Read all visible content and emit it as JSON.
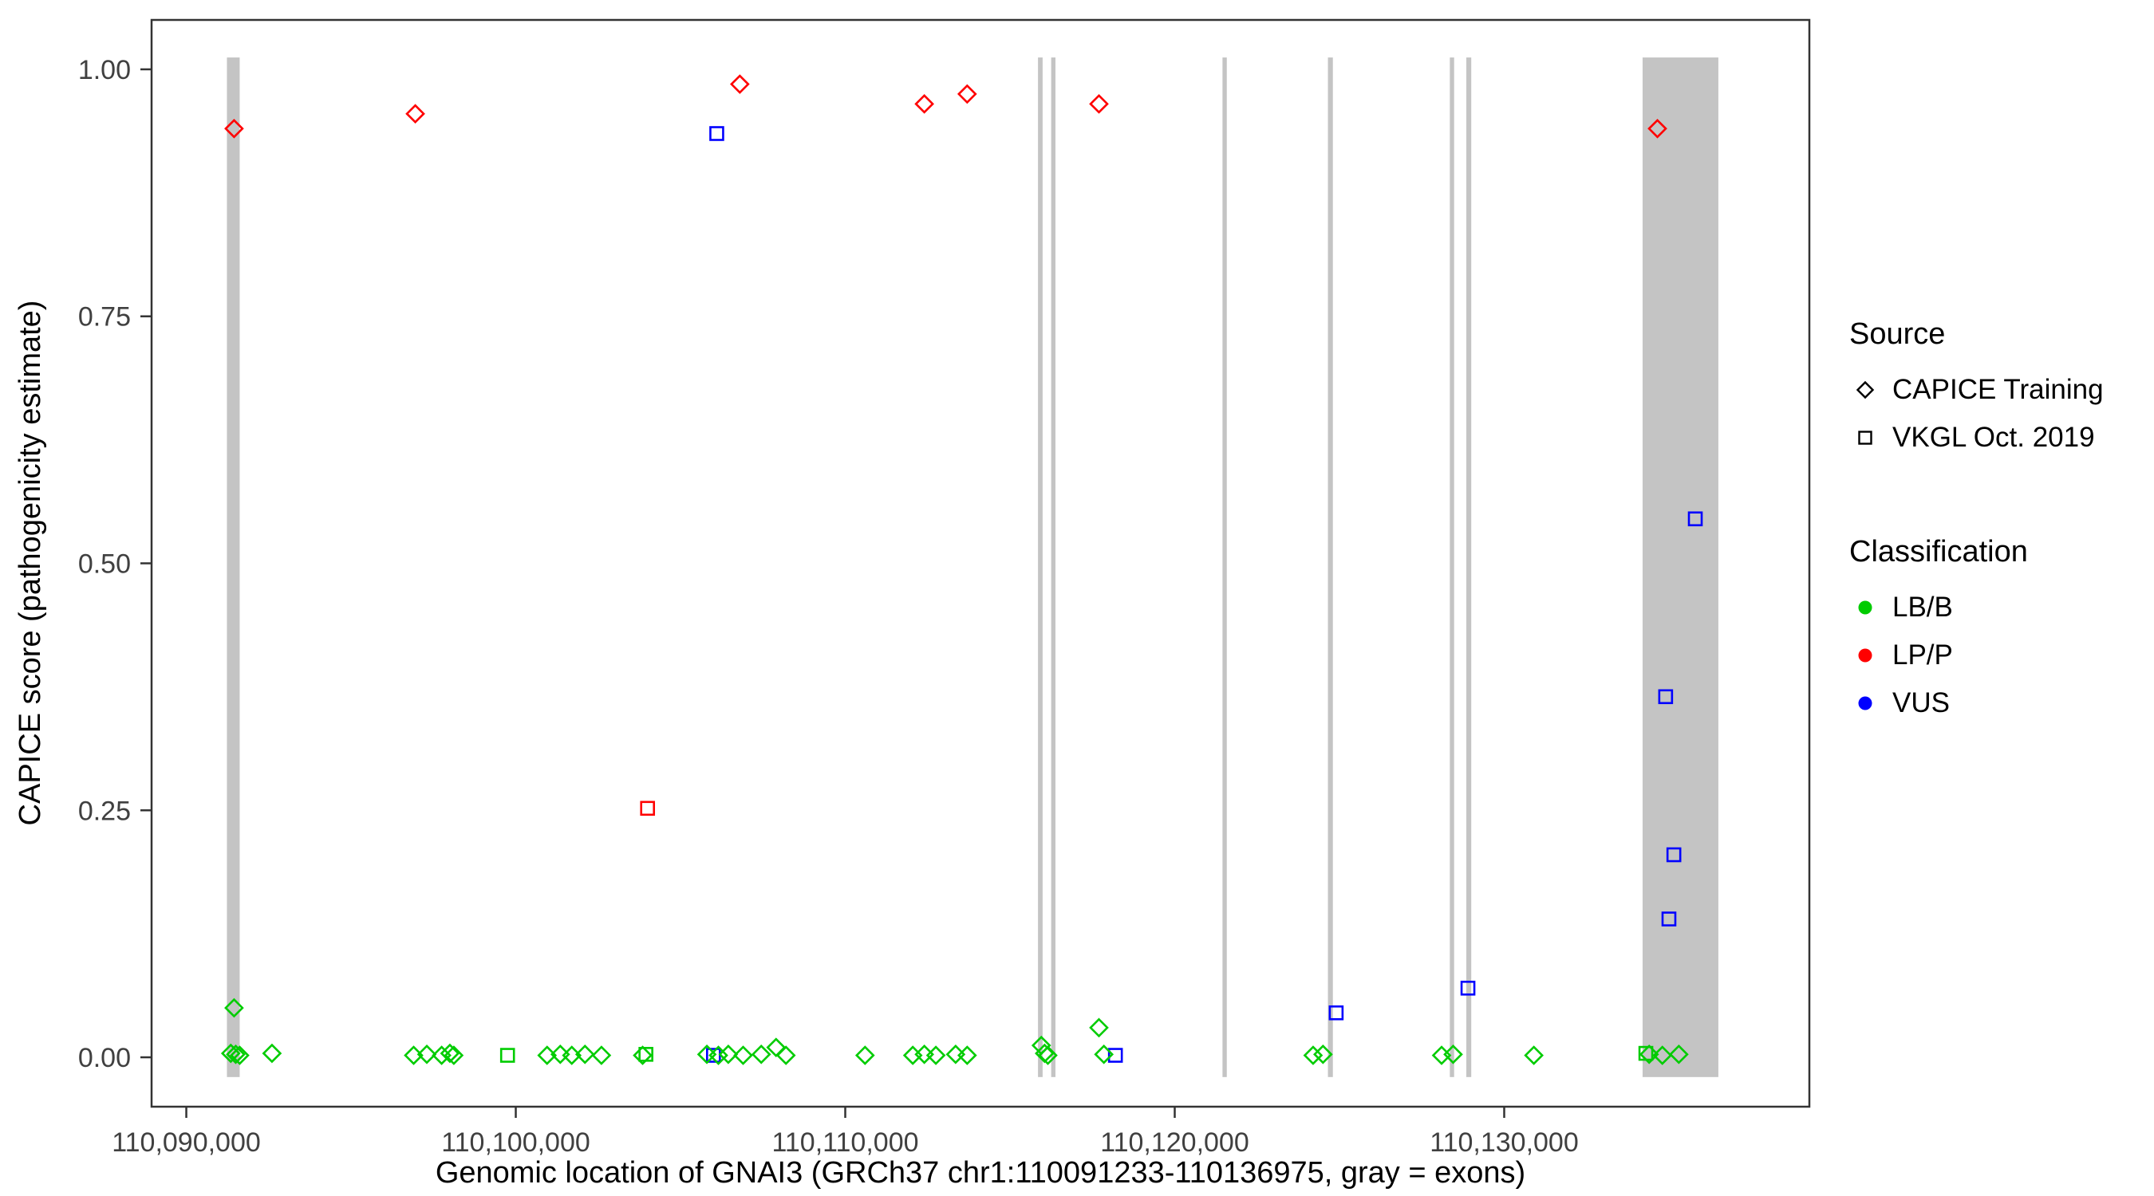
{
  "figure": {
    "xlabel": "Genomic location of GNAI3 (GRCh37 chr1:110091233-110136975, gray = exons)",
    "ylabel": "CAPICE score (pathogenicity estimate)"
  },
  "legend": {
    "source": {
      "title": "Source",
      "items": [
        {
          "label": "CAPICE Training",
          "marker": "diamond"
        },
        {
          "label": "VKGL Oct. 2019",
          "marker": "square"
        }
      ]
    },
    "classification": {
      "title": "Classification",
      "items": [
        {
          "label": "LB/B",
          "color": "#00CC00"
        },
        {
          "label": "LP/P",
          "color": "#FF0000"
        },
        {
          "label": "VUS",
          "color": "#0000FF"
        }
      ]
    }
  },
  "chart_data": {
    "type": "scatter",
    "title": "",
    "xlabel": "Genomic location of GNAI3 (GRCh37 chr1:110091233-110136975, gray = exons)",
    "ylabel": "CAPICE score (pathogenicity estimate)",
    "xlim": [
      110088946,
      110139262
    ],
    "ylim": [
      -0.05,
      1.05
    ],
    "grid": false,
    "legend_position": "right",
    "x_ticks": [
      {
        "value": 110090000,
        "label": "110,090,000"
      },
      {
        "value": 110100000,
        "label": "110,100,000"
      },
      {
        "value": 110110000,
        "label": "110,110,000"
      },
      {
        "value": 110120000,
        "label": "110,120,000"
      },
      {
        "value": 110130000,
        "label": "110,130,000"
      }
    ],
    "y_ticks": [
      {
        "value": 0.0,
        "label": "0.00"
      },
      {
        "value": 0.25,
        "label": "0.25"
      },
      {
        "value": 0.5,
        "label": "0.50"
      },
      {
        "value": 0.75,
        "label": "0.75"
      },
      {
        "value": 1.0,
        "label": "1.00"
      }
    ],
    "colors": {
      "LB/B": "#00CC00",
      "LP/P": "#FF0000",
      "VUS": "#0000FF"
    },
    "exon_color": "#C4C4C4",
    "exon_band": {
      "ymin": -0.02,
      "ymax": 1.012
    },
    "exons": [
      [
        110091233,
        110091620
      ],
      [
        110115850,
        110115990
      ],
      [
        110116250,
        110116380
      ],
      [
        110121450,
        110121580
      ],
      [
        110124650,
        110124800
      ],
      [
        110128350,
        110128480
      ],
      [
        110128850,
        110129000
      ],
      [
        110134200,
        110136500
      ]
    ],
    "series": [
      {
        "name": "CAPICE Training / LP/P",
        "source": "CAPICE Training",
        "classification": "LP/P",
        "marker": "diamond",
        "points": [
          [
            110091450,
            0.94
          ],
          [
            110096950,
            0.955
          ],
          [
            110106800,
            0.985
          ],
          [
            110112400,
            0.965
          ],
          [
            110113700,
            0.975
          ],
          [
            110117700,
            0.965
          ],
          [
            110134650,
            0.94
          ]
        ]
      },
      {
        "name": "VKGL Oct. 2019 / LP/P",
        "source": "VKGL Oct. 2019",
        "classification": "LP/P",
        "marker": "square",
        "points": [
          [
            110104000,
            0.252
          ]
        ]
      },
      {
        "name": "VKGL Oct. 2019 / VUS",
        "source": "VKGL Oct. 2019",
        "classification": "VUS",
        "marker": "square",
        "points": [
          [
            110106100,
            0.935
          ],
          [
            110135800,
            0.545
          ],
          [
            110134900,
            0.365
          ],
          [
            110135150,
            0.205
          ],
          [
            110135000,
            0.14
          ],
          [
            110128900,
            0.07
          ],
          [
            110124900,
            0.045
          ],
          [
            110118200,
            0.002
          ],
          [
            110106000,
            0.002
          ]
        ]
      },
      {
        "name": "CAPICE Training / LB/B",
        "source": "CAPICE Training",
        "classification": "LB/B",
        "marker": "diamond",
        "points": [
          [
            110091450,
            0.05
          ],
          [
            110091350,
            0.004
          ],
          [
            110091500,
            0.003
          ],
          [
            110091620,
            0.002
          ],
          [
            110092600,
            0.004
          ],
          [
            110096900,
            0.002
          ],
          [
            110097300,
            0.003
          ],
          [
            110097750,
            0.002
          ],
          [
            110098000,
            0.004
          ],
          [
            110098120,
            0.002
          ],
          [
            110100950,
            0.002
          ],
          [
            110101350,
            0.003
          ],
          [
            110101700,
            0.002
          ],
          [
            110102100,
            0.003
          ],
          [
            110102600,
            0.002
          ],
          [
            110103850,
            0.002
          ],
          [
            110105800,
            0.003
          ],
          [
            110106150,
            0.002
          ],
          [
            110106450,
            0.003
          ],
          [
            110106900,
            0.002
          ],
          [
            110107450,
            0.003
          ],
          [
            110107900,
            0.01
          ],
          [
            110108200,
            0.002
          ],
          [
            110110600,
            0.002
          ],
          [
            110112050,
            0.002
          ],
          [
            110112400,
            0.003
          ],
          [
            110112750,
            0.002
          ],
          [
            110113350,
            0.003
          ],
          [
            110113700,
            0.002
          ],
          [
            110115950,
            0.012
          ],
          [
            110116050,
            0.004
          ],
          [
            110116150,
            0.002
          ],
          [
            110117700,
            0.03
          ],
          [
            110117850,
            0.003
          ],
          [
            110124200,
            0.002
          ],
          [
            110124500,
            0.003
          ],
          [
            110128100,
            0.002
          ],
          [
            110128450,
            0.003
          ],
          [
            110130900,
            0.002
          ],
          [
            110134400,
            0.003
          ],
          [
            110134800,
            0.002
          ],
          [
            110135300,
            0.003
          ]
        ]
      },
      {
        "name": "VKGL Oct. 2019 / LB/B",
        "source": "VKGL Oct. 2019",
        "classification": "LB/B",
        "marker": "square",
        "points": [
          [
            110099750,
            0.002
          ],
          [
            110103950,
            0.003
          ],
          [
            110134300,
            0.004
          ]
        ]
      }
    ]
  }
}
